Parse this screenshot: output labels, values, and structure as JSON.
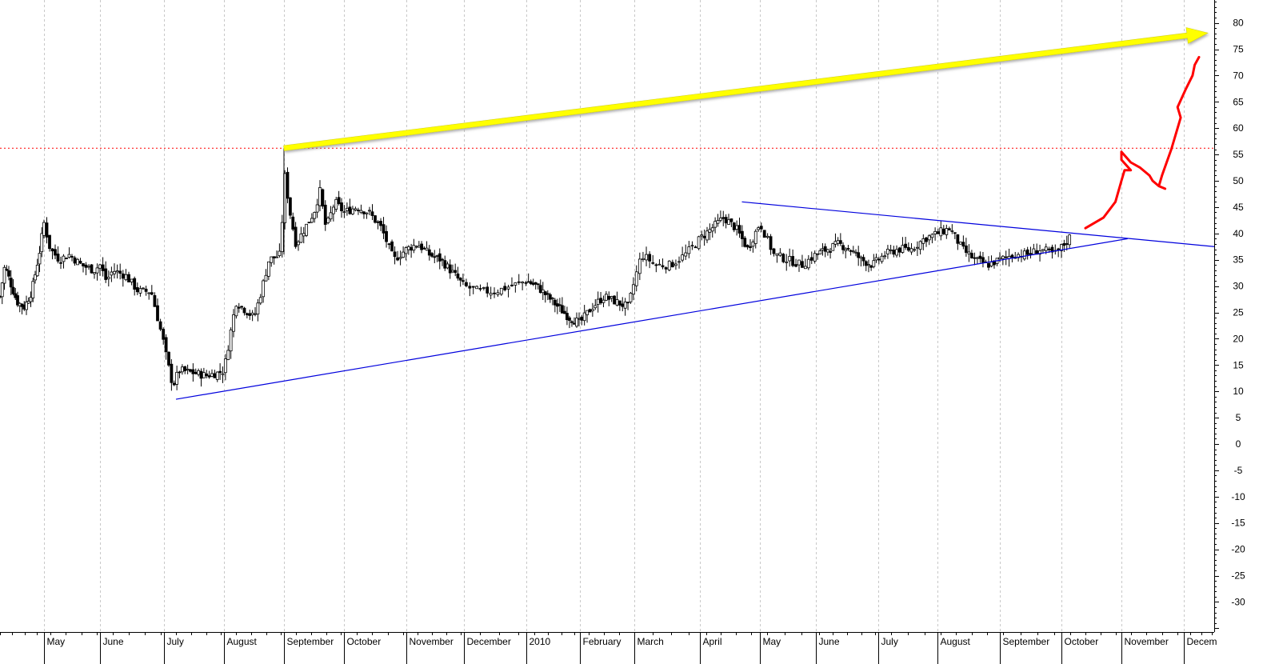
{
  "chart_data": {
    "type": "candlestick",
    "title": "",
    "xlabel": "",
    "ylabel": "",
    "ylim": [
      -35,
      85
    ],
    "y_ticks": [
      -30,
      -25,
      -20,
      -15,
      -10,
      -5,
      0,
      5,
      10,
      15,
      20,
      25,
      30,
      35,
      40,
      45,
      50,
      55,
      60,
      65,
      70,
      75,
      80
    ],
    "x_ticks": [
      {
        "label": "May",
        "t": 0.1
      },
      {
        "label": "June",
        "t": 1.0
      },
      {
        "label": "July",
        "t": 2.0
      },
      {
        "label": "August",
        "t": 3.0
      },
      {
        "label": "September",
        "t": 4.0
      },
      {
        "label": "October",
        "t": 5.0
      },
      {
        "label": "November",
        "t": 6.0
      },
      {
        "label": "December",
        "t": 7.0
      },
      {
        "label": "2010",
        "t": 7.8
      },
      {
        "label": "February",
        "t": 8.8
      },
      {
        "label": "March",
        "t": 9.7
      },
      {
        "label": "April",
        "t": 10.6
      },
      {
        "label": "May",
        "t": 11.6
      },
      {
        "label": "June",
        "t": 12.4
      },
      {
        "label": "July",
        "t": 13.5
      },
      {
        "label": "August",
        "t": 14.4
      },
      {
        "label": "September",
        "t": 15.4
      },
      {
        "label": "October",
        "t": 16.3
      },
      {
        "label": "November",
        "t": 17.3
      },
      {
        "label": "Decem",
        "t": 18.3
      }
    ],
    "t_range": [
      -0.8,
      19.0
    ],
    "grid": "vertical dashed",
    "price_path": [
      [
        -0.8,
        28
      ],
      [
        -0.7,
        34
      ],
      [
        -0.6,
        31
      ],
      [
        -0.45,
        27
      ],
      [
        -0.3,
        26
      ],
      [
        -0.15,
        29
      ],
      [
        0.0,
        36
      ],
      [
        0.1,
        42
      ],
      [
        0.2,
        37
      ],
      [
        0.35,
        35
      ],
      [
        0.5,
        36
      ],
      [
        0.7,
        34
      ],
      [
        0.9,
        33
      ],
      [
        1.0,
        34
      ],
      [
        1.1,
        31
      ],
      [
        1.2,
        33
      ],
      [
        1.4,
        32
      ],
      [
        1.6,
        29
      ],
      [
        1.8,
        29
      ],
      [
        1.9,
        24
      ],
      [
        2.0,
        19
      ],
      [
        2.05,
        16
      ],
      [
        2.15,
        11
      ],
      [
        2.25,
        14
      ],
      [
        2.5,
        13.5
      ],
      [
        2.7,
        13
      ],
      [
        2.9,
        13.5
      ],
      [
        3.0,
        14
      ],
      [
        3.2,
        27
      ],
      [
        3.4,
        25
      ],
      [
        3.5,
        24
      ],
      [
        3.6,
        28
      ],
      [
        3.75,
        35
      ],
      [
        3.95,
        36
      ],
      [
        4.0,
        52
      ],
      [
        4.1,
        44
      ],
      [
        4.2,
        38
      ],
      [
        4.35,
        41
      ],
      [
        4.5,
        44
      ],
      [
        4.6,
        48
      ],
      [
        4.7,
        41
      ],
      [
        4.85,
        46
      ],
      [
        5.0,
        44
      ],
      [
        5.2,
        45
      ],
      [
        5.4,
        44
      ],
      [
        5.6,
        41
      ],
      [
        5.8,
        35
      ],
      [
        6.0,
        37
      ],
      [
        6.2,
        38
      ],
      [
        6.4,
        36
      ],
      [
        6.6,
        35
      ],
      [
        6.85,
        32
      ],
      [
        7.0,
        30
      ],
      [
        7.2,
        29
      ],
      [
        7.4,
        29
      ],
      [
        7.6,
        30
      ],
      [
        7.8,
        31
      ],
      [
        8.0,
        30
      ],
      [
        8.2,
        28
      ],
      [
        8.4,
        26
      ],
      [
        8.6,
        24
      ],
      [
        8.8,
        23
      ],
      [
        9.0,
        26
      ],
      [
        9.2,
        28
      ],
      [
        9.4,
        27
      ],
      [
        9.6,
        26
      ],
      [
        9.8,
        36
      ],
      [
        10.0,
        34
      ],
      [
        10.2,
        34
      ],
      [
        10.4,
        36
      ],
      [
        10.6,
        39
      ],
      [
        10.8,
        41
      ],
      [
        11.0,
        43
      ],
      [
        11.2,
        41
      ],
      [
        11.4,
        37
      ],
      [
        11.6,
        42
      ],
      [
        11.8,
        36
      ],
      [
        12.0,
        35
      ],
      [
        12.2,
        34
      ],
      [
        12.4,
        36
      ],
      [
        12.6,
        37
      ],
      [
        12.8,
        38
      ],
      [
        13.0,
        37
      ],
      [
        13.2,
        35
      ],
      [
        13.4,
        34
      ],
      [
        13.6,
        36
      ],
      [
        13.8,
        37
      ],
      [
        14.0,
        37
      ],
      [
        14.2,
        39
      ],
      [
        14.4,
        40
      ],
      [
        14.6,
        41
      ],
      [
        14.8,
        37
      ],
      [
        15.0,
        35
      ],
      [
        15.2,
        34
      ],
      [
        15.4,
        35
      ],
      [
        15.6,
        36
      ],
      [
        15.8,
        36
      ],
      [
        16.0,
        37
      ],
      [
        16.2,
        36
      ],
      [
        16.35,
        38
      ],
      [
        16.45,
        39.5
      ]
    ],
    "support_line": {
      "from": [
        2.2,
        8.5
      ],
      "to": [
        17.4,
        39
      ]
    },
    "resistance_line": {
      "from": [
        11.3,
        46
      ],
      "to": [
        19.0,
        37.5
      ]
    },
    "high_level": 56.2,
    "projection_arrow": {
      "from": [
        4.0,
        56.2
      ],
      "to": [
        19.0,
        79
      ]
    },
    "hand_drawn_projection": [
      [
        16.7,
        41
      ],
      [
        17.0,
        43
      ],
      [
        17.2,
        46
      ],
      [
        17.3,
        50
      ],
      [
        17.35,
        52
      ],
      [
        17.45,
        52
      ],
      [
        17.3,
        54
      ],
      [
        17.3,
        55.5
      ],
      [
        17.45,
        53.5
      ],
      [
        17.6,
        52.5
      ],
      [
        17.75,
        51
      ],
      [
        17.8,
        50
      ],
      [
        17.9,
        49
      ],
      [
        18.0,
        48.5
      ],
      [
        17.9,
        49
      ],
      [
        17.95,
        51
      ],
      [
        18.1,
        56
      ],
      [
        18.2,
        60
      ],
      [
        18.25,
        62
      ],
      [
        18.2,
        64
      ],
      [
        18.35,
        67.5
      ],
      [
        18.5,
        70
      ],
      [
        18.55,
        72
      ],
      [
        18.65,
        73.5
      ]
    ],
    "colors": {
      "candle_up": "#ffffff",
      "candle_down": "#000000",
      "trendline": "#0000dd",
      "level_line": "#ff0000",
      "arrow": "#ffff00",
      "projection": "#ff0000",
      "grid": "#c8c8c8"
    }
  }
}
